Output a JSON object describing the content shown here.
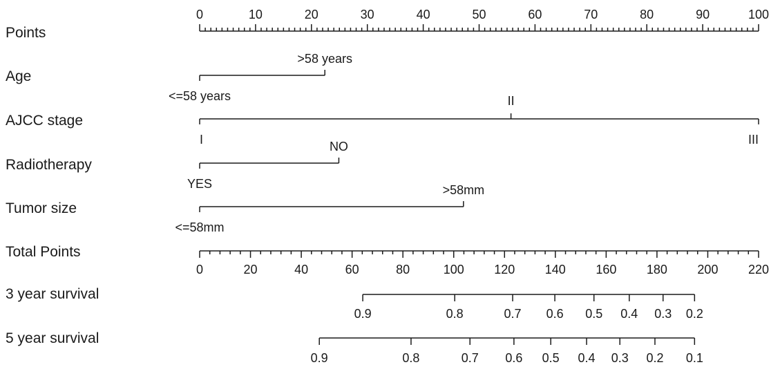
{
  "chart_data": {
    "type": "nomogram",
    "rows": [
      {
        "id": "points",
        "label": "Points",
        "kind": "scale",
        "range": [
          0,
          100
        ],
        "major_ticks": [
          0,
          10,
          20,
          30,
          40,
          50,
          60,
          70,
          80,
          90,
          100
        ],
        "minor_step": 1,
        "tick_labels": [
          "0",
          "10",
          "20",
          "30",
          "40",
          "50",
          "60",
          "70",
          "80",
          "90",
          "100"
        ]
      },
      {
        "id": "age",
        "label": "Age",
        "kind": "variable",
        "levels": [
          {
            "name": "<=58 years",
            "points": 0
          },
          {
            "name": ">58 years",
            "points": 22.4
          }
        ]
      },
      {
        "id": "ajcc",
        "label": "AJCC stage",
        "kind": "variable",
        "levels": [
          {
            "name": "I",
            "points": 0
          },
          {
            "name": "II",
            "points": 55.7
          },
          {
            "name": "III",
            "points": 100
          }
        ]
      },
      {
        "id": "radio",
        "label": "Radiotherapy",
        "kind": "variable",
        "levels": [
          {
            "name": "YES",
            "points": 0
          },
          {
            "name": "NO",
            "points": 24.9
          }
        ]
      },
      {
        "id": "tumor",
        "label": "Tumor size",
        "kind": "variable",
        "levels": [
          {
            "name": "<=58mm",
            "points": 0
          },
          {
            "name": ">58mm",
            "points": 47.2
          }
        ]
      },
      {
        "id": "total",
        "label": "Total Points",
        "kind": "scale",
        "range": [
          0,
          220
        ],
        "major_ticks": [
          0,
          20,
          40,
          60,
          80,
          100,
          120,
          140,
          160,
          180,
          200,
          220
        ],
        "minor_step": 4,
        "tick_labels": [
          "0",
          "20",
          "40",
          "60",
          "80",
          "100",
          "120",
          "140",
          "160",
          "180",
          "200",
          "220"
        ]
      },
      {
        "id": "surv3",
        "label": "3 year survival",
        "kind": "probability",
        "ticks": [
          {
            "label": "0.9",
            "total": 64.2
          },
          {
            "label": "0.8",
            "total": 100.4
          },
          {
            "label": "0.7",
            "total": 123.2
          },
          {
            "label": "0.6",
            "total": 139.8
          },
          {
            "label": "0.5",
            "total": 155.2
          },
          {
            "label": "0.4",
            "total": 169.1
          },
          {
            "label": "0.3",
            "total": 182.4
          },
          {
            "label": "0.2",
            "total": 194.8
          }
        ]
      },
      {
        "id": "surv5",
        "label": "5 year survival",
        "kind": "probability",
        "ticks": [
          {
            "label": "0.9",
            "total": 47.1
          },
          {
            "label": "0.8",
            "total": 83.2
          },
          {
            "label": "0.7",
            "total": 106.4
          },
          {
            "label": "0.6",
            "total": 123.7
          },
          {
            "label": "0.5",
            "total": 138.2
          },
          {
            "label": "0.4",
            "total": 152.3
          },
          {
            "label": "0.3",
            "total": 165.4
          },
          {
            "label": "0.2",
            "total": 179.2
          },
          {
            "label": "0.1",
            "total": 194.8
          }
        ]
      }
    ]
  }
}
